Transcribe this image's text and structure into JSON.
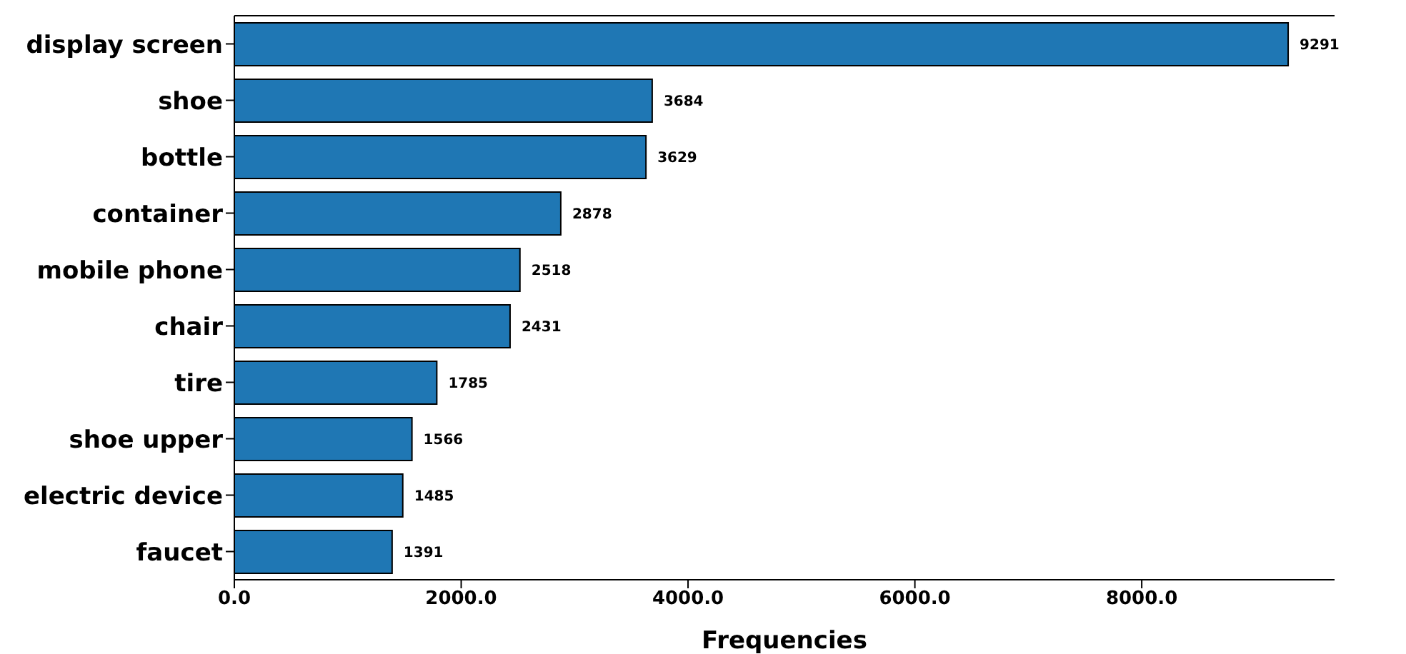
{
  "chart_data": {
    "type": "bar",
    "orientation": "horizontal",
    "xlabel": "Frequencies",
    "categories": [
      "display screen",
      "shoe",
      "bottle",
      "container",
      "mobile phone",
      "chair",
      "tire",
      "shoe upper",
      "electric device",
      "faucet"
    ],
    "values": [
      9291,
      3684,
      3629,
      2878,
      2518,
      2431,
      1785,
      1566,
      1485,
      1391
    ],
    "color": "#1f77b4",
    "data_labels": true,
    "xlim": [
      0,
      9700
    ],
    "xticks": [
      {
        "value": 0,
        "label": "0.0"
      },
      {
        "value": 2000,
        "label": "2000.0"
      },
      {
        "value": 4000,
        "label": "4000.0"
      },
      {
        "value": 6000,
        "label": "6000.0"
      },
      {
        "value": 8000,
        "label": "8000.0"
      }
    ]
  }
}
